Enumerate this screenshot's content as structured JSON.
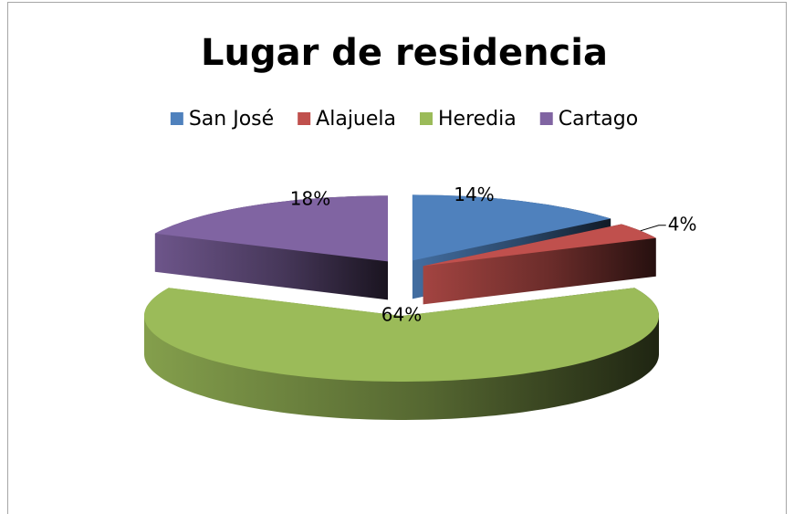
{
  "chart_data": {
    "type": "pie",
    "title": "Lugar de residencia",
    "categories": [
      "San José",
      "Alajuela",
      "Heredia",
      "Cartago"
    ],
    "values": [
      14,
      4,
      64,
      18
    ],
    "value_labels": [
      "14%",
      "4%",
      "64%",
      "18%"
    ],
    "colors": [
      "#4f81bd",
      "#c0504d",
      "#9bbb59",
      "#8064a2"
    ],
    "legend": "top"
  }
}
